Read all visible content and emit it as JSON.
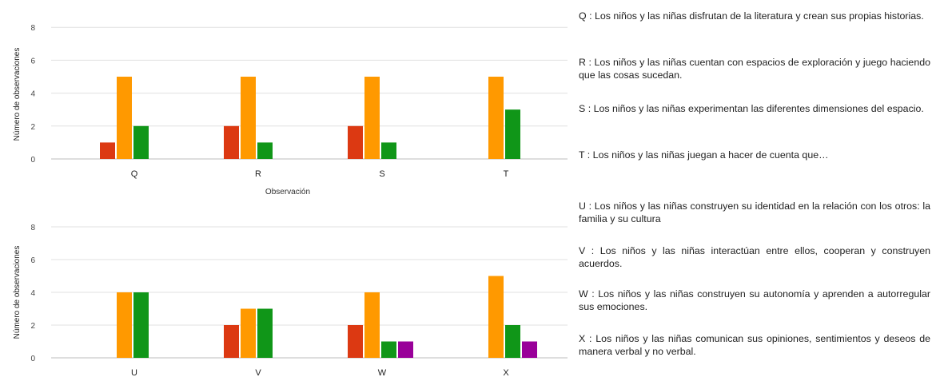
{
  "colors": {
    "red": "#dc3912",
    "orange": "#ff9900",
    "green": "#109618",
    "purple": "#990099",
    "grid": "#e0e0e0",
    "baseline": "#bdbdbd"
  },
  "chart_data": [
    {
      "type": "bar",
      "xlabel": "Observación",
      "ylabel": "Número de observaciones",
      "ylim": [
        0,
        8
      ],
      "yticks": [
        0,
        2,
        4,
        6,
        8
      ],
      "grid": true,
      "categories": [
        "Q",
        "R",
        "S",
        "T"
      ],
      "series": [
        {
          "color": "#dc3912",
          "values": [
            1,
            2,
            2,
            0
          ]
        },
        {
          "color": "#ff9900",
          "values": [
            5,
            5,
            5,
            5
          ]
        },
        {
          "color": "#109618",
          "values": [
            2,
            1,
            1,
            3
          ]
        }
      ]
    },
    {
      "type": "bar",
      "xlabel": "",
      "ylabel": "Número de observaciones",
      "ylim": [
        0,
        8
      ],
      "yticks": [
        0,
        2,
        4,
        6,
        8
      ],
      "grid": true,
      "categories": [
        "U",
        "V",
        "W",
        "X"
      ],
      "series": [
        {
          "color": "#dc3912",
          "values": [
            0,
            2,
            2,
            0
          ]
        },
        {
          "color": "#ff9900",
          "values": [
            4,
            3,
            4,
            5
          ]
        },
        {
          "color": "#109618",
          "values": [
            4,
            3,
            1,
            2
          ]
        },
        {
          "color": "#990099",
          "values": [
            0,
            0,
            1,
            1
          ]
        }
      ]
    }
  ],
  "legend": [
    "Q : Los niños y las niñas disfrutan de la literatura y crean sus propias historias.",
    "R : Los niños y las niñas cuentan con espacios de exploración y juego haciendo que las cosas sucedan.",
    "S : Los niños y las niñas experimentan las diferentes dimensiones del espacio.",
    "T : Los niños y las niñas juegan a hacer de cuenta que…",
    "U : Los niños y las niñas construyen su identidad en la relación con los otros: la familia y su cultura",
    "V : Los niños y las niñas interactúan entre ellos, cooperan y construyen acuerdos.",
    "W : Los niños y las niñas construyen su autonomía y aprenden a autorregular sus emociones.",
    "X : Los niños y las niñas comunican sus opiniones, sentimientos y deseos de manera verbal y no verbal."
  ]
}
